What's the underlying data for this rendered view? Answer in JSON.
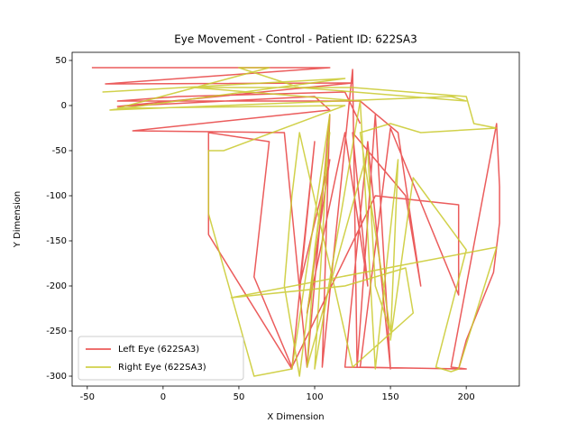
{
  "chart_data": {
    "type": "line",
    "title": "Eye Movement - Control - Patient ID: 622SA3",
    "x_label": "X Dimension",
    "y_label": "Y Dimension",
    "xlim": [
      -60,
      235
    ],
    "ylim": [
      -311,
      59
    ],
    "xticks": [
      -50,
      0,
      50,
      100,
      150,
      200
    ],
    "yticks": [
      50,
      0,
      -50,
      -100,
      -150,
      -200,
      -250,
      -300
    ],
    "legend": "lower left",
    "series": [
      {
        "name": "Left Eye (622SA3)",
        "color": "#e8403f",
        "x": [
          -47,
          110,
          -38,
          125,
          -30,
          100,
          110,
          -20,
          80,
          95,
          110,
          105,
          125,
          128,
          140,
          150,
          135,
          120,
          200,
          190,
          220,
          222,
          222,
          218,
          200,
          195,
          130,
          150,
          195,
          195,
          140,
          85,
          60,
          70,
          30,
          30,
          85,
          100,
          90,
          110,
          95,
          120,
          135,
          125,
          160,
          170,
          155,
          130,
          -30,
          10,
          120,
          130
        ],
        "values": [
          42,
          42,
          24,
          25,
          -1,
          10,
          -5,
          -28,
          -30,
          -290,
          -10,
          -290,
          40,
          -290,
          -10,
          -292,
          -40,
          -290,
          -292,
          -290,
          -20,
          -90,
          -130,
          -185,
          -260,
          -292,
          -290,
          -25,
          -210,
          -110,
          -100,
          -290,
          -190,
          -40,
          -30,
          -143,
          -292,
          -40,
          -200,
          -60,
          -230,
          -30,
          -200,
          -30,
          -100,
          -200,
          -30,
          5,
          5,
          10,
          15,
          -20
        ]
      },
      {
        "name": "Right Eye (622SA3)",
        "color": "#c9c92c",
        "x": [
          -40,
          120,
          -35,
          190,
          200,
          90,
          50,
          70,
          -30,
          120,
          40,
          30,
          30,
          60,
          85,
          110,
          100,
          130,
          140,
          155,
          150,
          165,
          200,
          180,
          190,
          195,
          220,
          45,
          120,
          160,
          165,
          125,
          90,
          85,
          80,
          90,
          110,
          100,
          95,
          135,
          140,
          150,
          130,
          150,
          170,
          220,
          205,
          200,
          125,
          20,
          130
        ],
        "values": [
          15,
          30,
          -5,
          10,
          5,
          20,
          42,
          42,
          -3,
          0,
          -50,
          -50,
          -120,
          -300,
          -292,
          -10,
          -292,
          5,
          -292,
          -60,
          -260,
          -80,
          -160,
          -290,
          -295,
          -292,
          -157,
          -213,
          -200,
          -180,
          -230,
          -290,
          -30,
          -100,
          -200,
          -300,
          -30,
          -160,
          -290,
          -50,
          -200,
          -250,
          -30,
          -20,
          -30,
          -25,
          -20,
          10,
          20,
          20,
          5
        ]
      }
    ]
  }
}
